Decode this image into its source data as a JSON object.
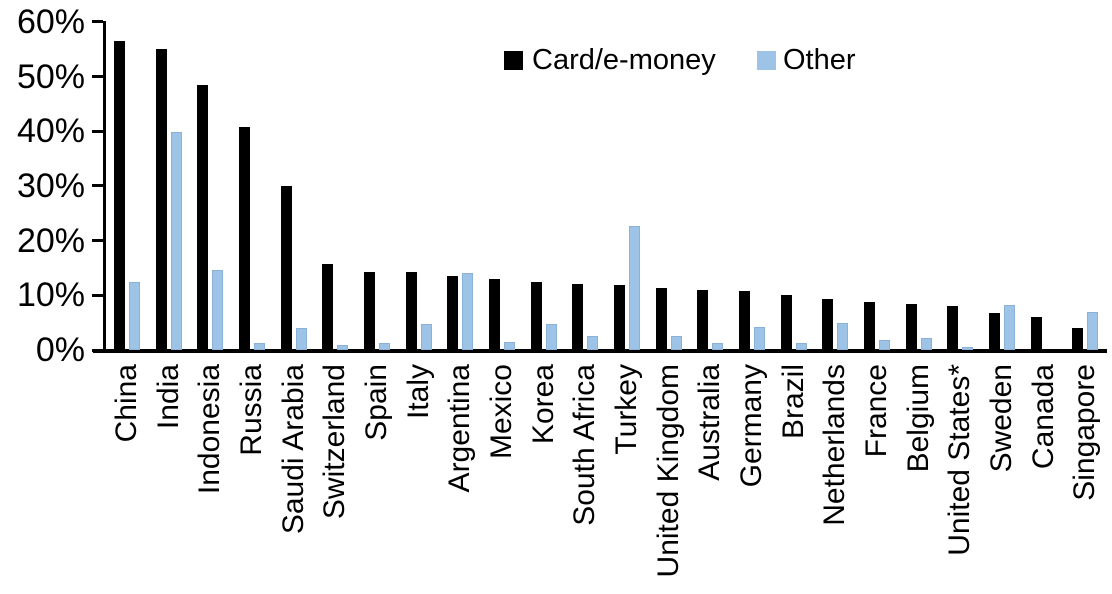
{
  "chart_data": {
    "type": "bar",
    "title": "",
    "xlabel": "",
    "ylabel": "",
    "ylim": [
      0,
      60
    ],
    "grid": false,
    "legend_position": "top-center",
    "background_color": "#ffffff",
    "axis_color": "#000000",
    "yticks": [
      "0%",
      "10%",
      "20%",
      "30%",
      "40%",
      "50%",
      "60%"
    ],
    "ytick_values": [
      0,
      10,
      20,
      30,
      40,
      50,
      60
    ],
    "categories": [
      "China",
      "India",
      "Indonesia",
      "Russia",
      "Saudi Arabia",
      "Switzerland",
      "Spain",
      "Italy",
      "Argentina",
      "Mexico",
      "Korea",
      "South Africa",
      "Turkey",
      "United Kingdom",
      "Australia",
      "Germany",
      "Brazil",
      "Netherlands",
      "France",
      "Belgium",
      "United States*",
      "Sweden",
      "Canada",
      "Singapore"
    ],
    "series": [
      {
        "name": "Card/e-money",
        "color": "#000000",
        "values": [
          56.4,
          55.1,
          48.5,
          40.7,
          30.0,
          15.8,
          14.3,
          14.2,
          13.5,
          13.0,
          12.4,
          12.0,
          11.8,
          11.3,
          11.0,
          10.8,
          10.1,
          9.4,
          8.8,
          8.4,
          8.0,
          6.8,
          6.1,
          4.1
        ]
      },
      {
        "name": "Other",
        "color": "#9DC3E6",
        "values": [
          12.4,
          39.8,
          14.7,
          1.2,
          4.0,
          1.0,
          1.2,
          4.8,
          14.0,
          1.5,
          4.8,
          2.5,
          22.7,
          2.5,
          1.2,
          4.2,
          1.3,
          5.0,
          1.8,
          2.2,
          0.6,
          8.2,
          0,
          6.9
        ]
      }
    ]
  },
  "legend": {
    "card_label": "Card/e-money",
    "other_label": "Other"
  }
}
